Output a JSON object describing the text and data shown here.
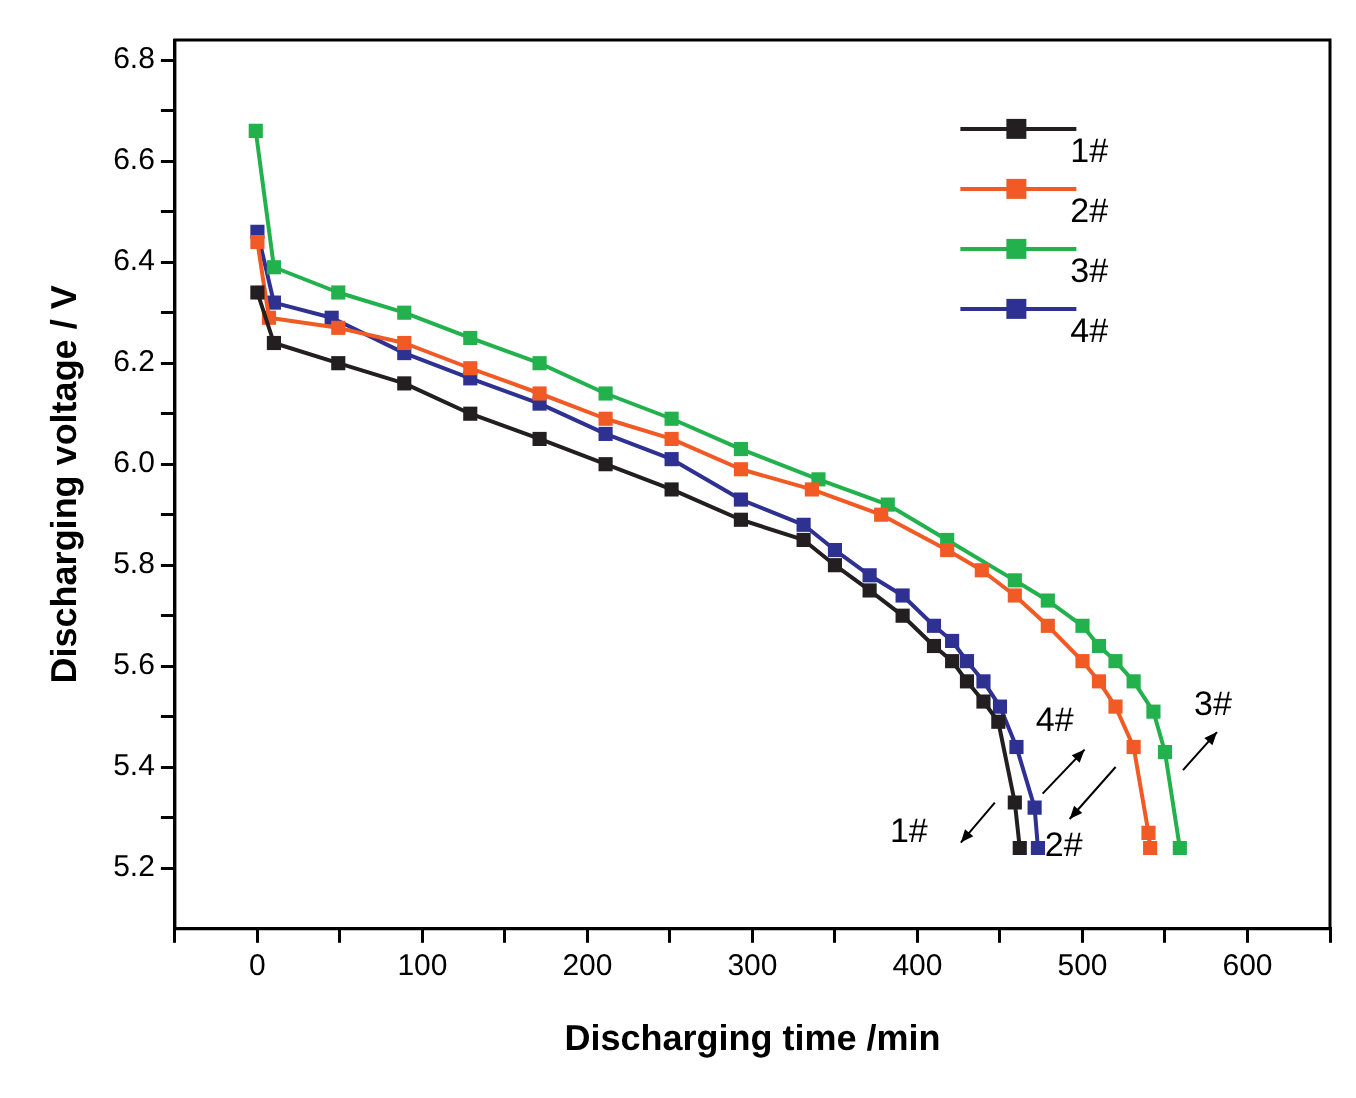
{
  "chart_data": {
    "type": "line",
    "xlabel": "Discharging time /min",
    "ylabel": "Discharging voltage / V",
    "xlim": [
      -50,
      650
    ],
    "ylim": [
      5.08,
      6.84
    ],
    "xticks": [
      {
        "value": -50,
        "label": null
      },
      0,
      {
        "value": 50,
        "label": null
      },
      100,
      {
        "value": 150,
        "label": null
      },
      200,
      {
        "value": 250,
        "label": null
      },
      300,
      {
        "value": 350,
        "label": null
      },
      400,
      {
        "value": 450,
        "label": null
      },
      500,
      {
        "value": 550,
        "label": null
      },
      600,
      {
        "value": 650,
        "label": null
      }
    ],
    "yticks": [
      5.2,
      {
        "value": 5.3,
        "label": null
      },
      5.4,
      {
        "value": 5.5,
        "label": null
      },
      5.6,
      {
        "value": 5.7,
        "label": null
      },
      5.8,
      {
        "value": 5.9,
        "label": null
      },
      {
        "value": 6,
        "label": "6.0"
      },
      {
        "value": 6.1,
        "label": null
      },
      6.2,
      {
        "value": 6.3,
        "label": null
      },
      6.4,
      {
        "value": 6.5,
        "label": null
      },
      6.6,
      {
        "value": 6.7,
        "label": null
      },
      6.8
    ],
    "grid": false,
    "legend": "top right",
    "marker": "square",
    "line_style": "solid",
    "series": [
      {
        "name": "1#",
        "color": "#231f20",
        "x": [
          0,
          10,
          49,
          89,
          129,
          171,
          211,
          251,
          293,
          331,
          350,
          371,
          391,
          410,
          421,
          430,
          440,
          449,
          459,
          462
        ],
        "values": [
          6.34,
          6.24,
          6.2,
          6.16,
          6.1,
          6.05,
          6.0,
          5.95,
          5.89,
          5.85,
          5.8,
          5.75,
          5.7,
          5.64,
          5.61,
          5.57,
          5.53,
          5.49,
          5.33,
          5.24
        ]
      },
      {
        "name": "2#",
        "color": "#f15a24",
        "x": [
          0,
          7,
          49,
          89,
          129,
          171,
          211,
          251,
          293,
          336,
          378,
          418,
          439,
          459,
          479,
          500,
          510,
          520,
          531,
          540,
          541
        ],
        "values": [
          6.44,
          6.29,
          6.27,
          6.24,
          6.19,
          6.14,
          6.09,
          6.05,
          5.99,
          5.95,
          5.9,
          5.83,
          5.79,
          5.74,
          5.68,
          5.61,
          5.57,
          5.52,
          5.44,
          5.27,
          5.24
        ]
      },
      {
        "name": "3#",
        "color": "#22b14c",
        "x": [
          -1,
          10,
          49,
          89,
          129,
          171,
          211,
          251,
          293,
          340,
          382,
          418,
          459,
          479,
          500,
          510,
          520,
          531,
          543,
          550,
          559
        ],
        "values": [
          6.66,
          6.39,
          6.34,
          6.3,
          6.25,
          6.2,
          6.14,
          6.09,
          6.03,
          5.97,
          5.92,
          5.85,
          5.77,
          5.73,
          5.68,
          5.64,
          5.61,
          5.57,
          5.51,
          5.43,
          5.24
        ]
      },
      {
        "name": "4#",
        "color": "#2e3192",
        "x": [
          0,
          10,
          45,
          89,
          129,
          171,
          211,
          251,
          293,
          331,
          350,
          371,
          391,
          410,
          421,
          430,
          440,
          450,
          460,
          471,
          473
        ],
        "values": [
          6.46,
          6.32,
          6.29,
          6.22,
          6.17,
          6.12,
          6.06,
          6.01,
          5.93,
          5.88,
          5.83,
          5.78,
          5.74,
          5.68,
          5.65,
          5.61,
          5.57,
          5.52,
          5.44,
          5.32,
          5.24
        ]
      }
    ],
    "annotations": [
      {
        "text": "1#",
        "x": 459,
        "y": 5.33
      },
      {
        "text": "2#",
        "x": 531,
        "y": 5.44
      },
      {
        "text": "3#",
        "x": 550,
        "y": 5.43
      },
      {
        "text": "4#",
        "x": 471,
        "y": 5.32
      }
    ]
  }
}
